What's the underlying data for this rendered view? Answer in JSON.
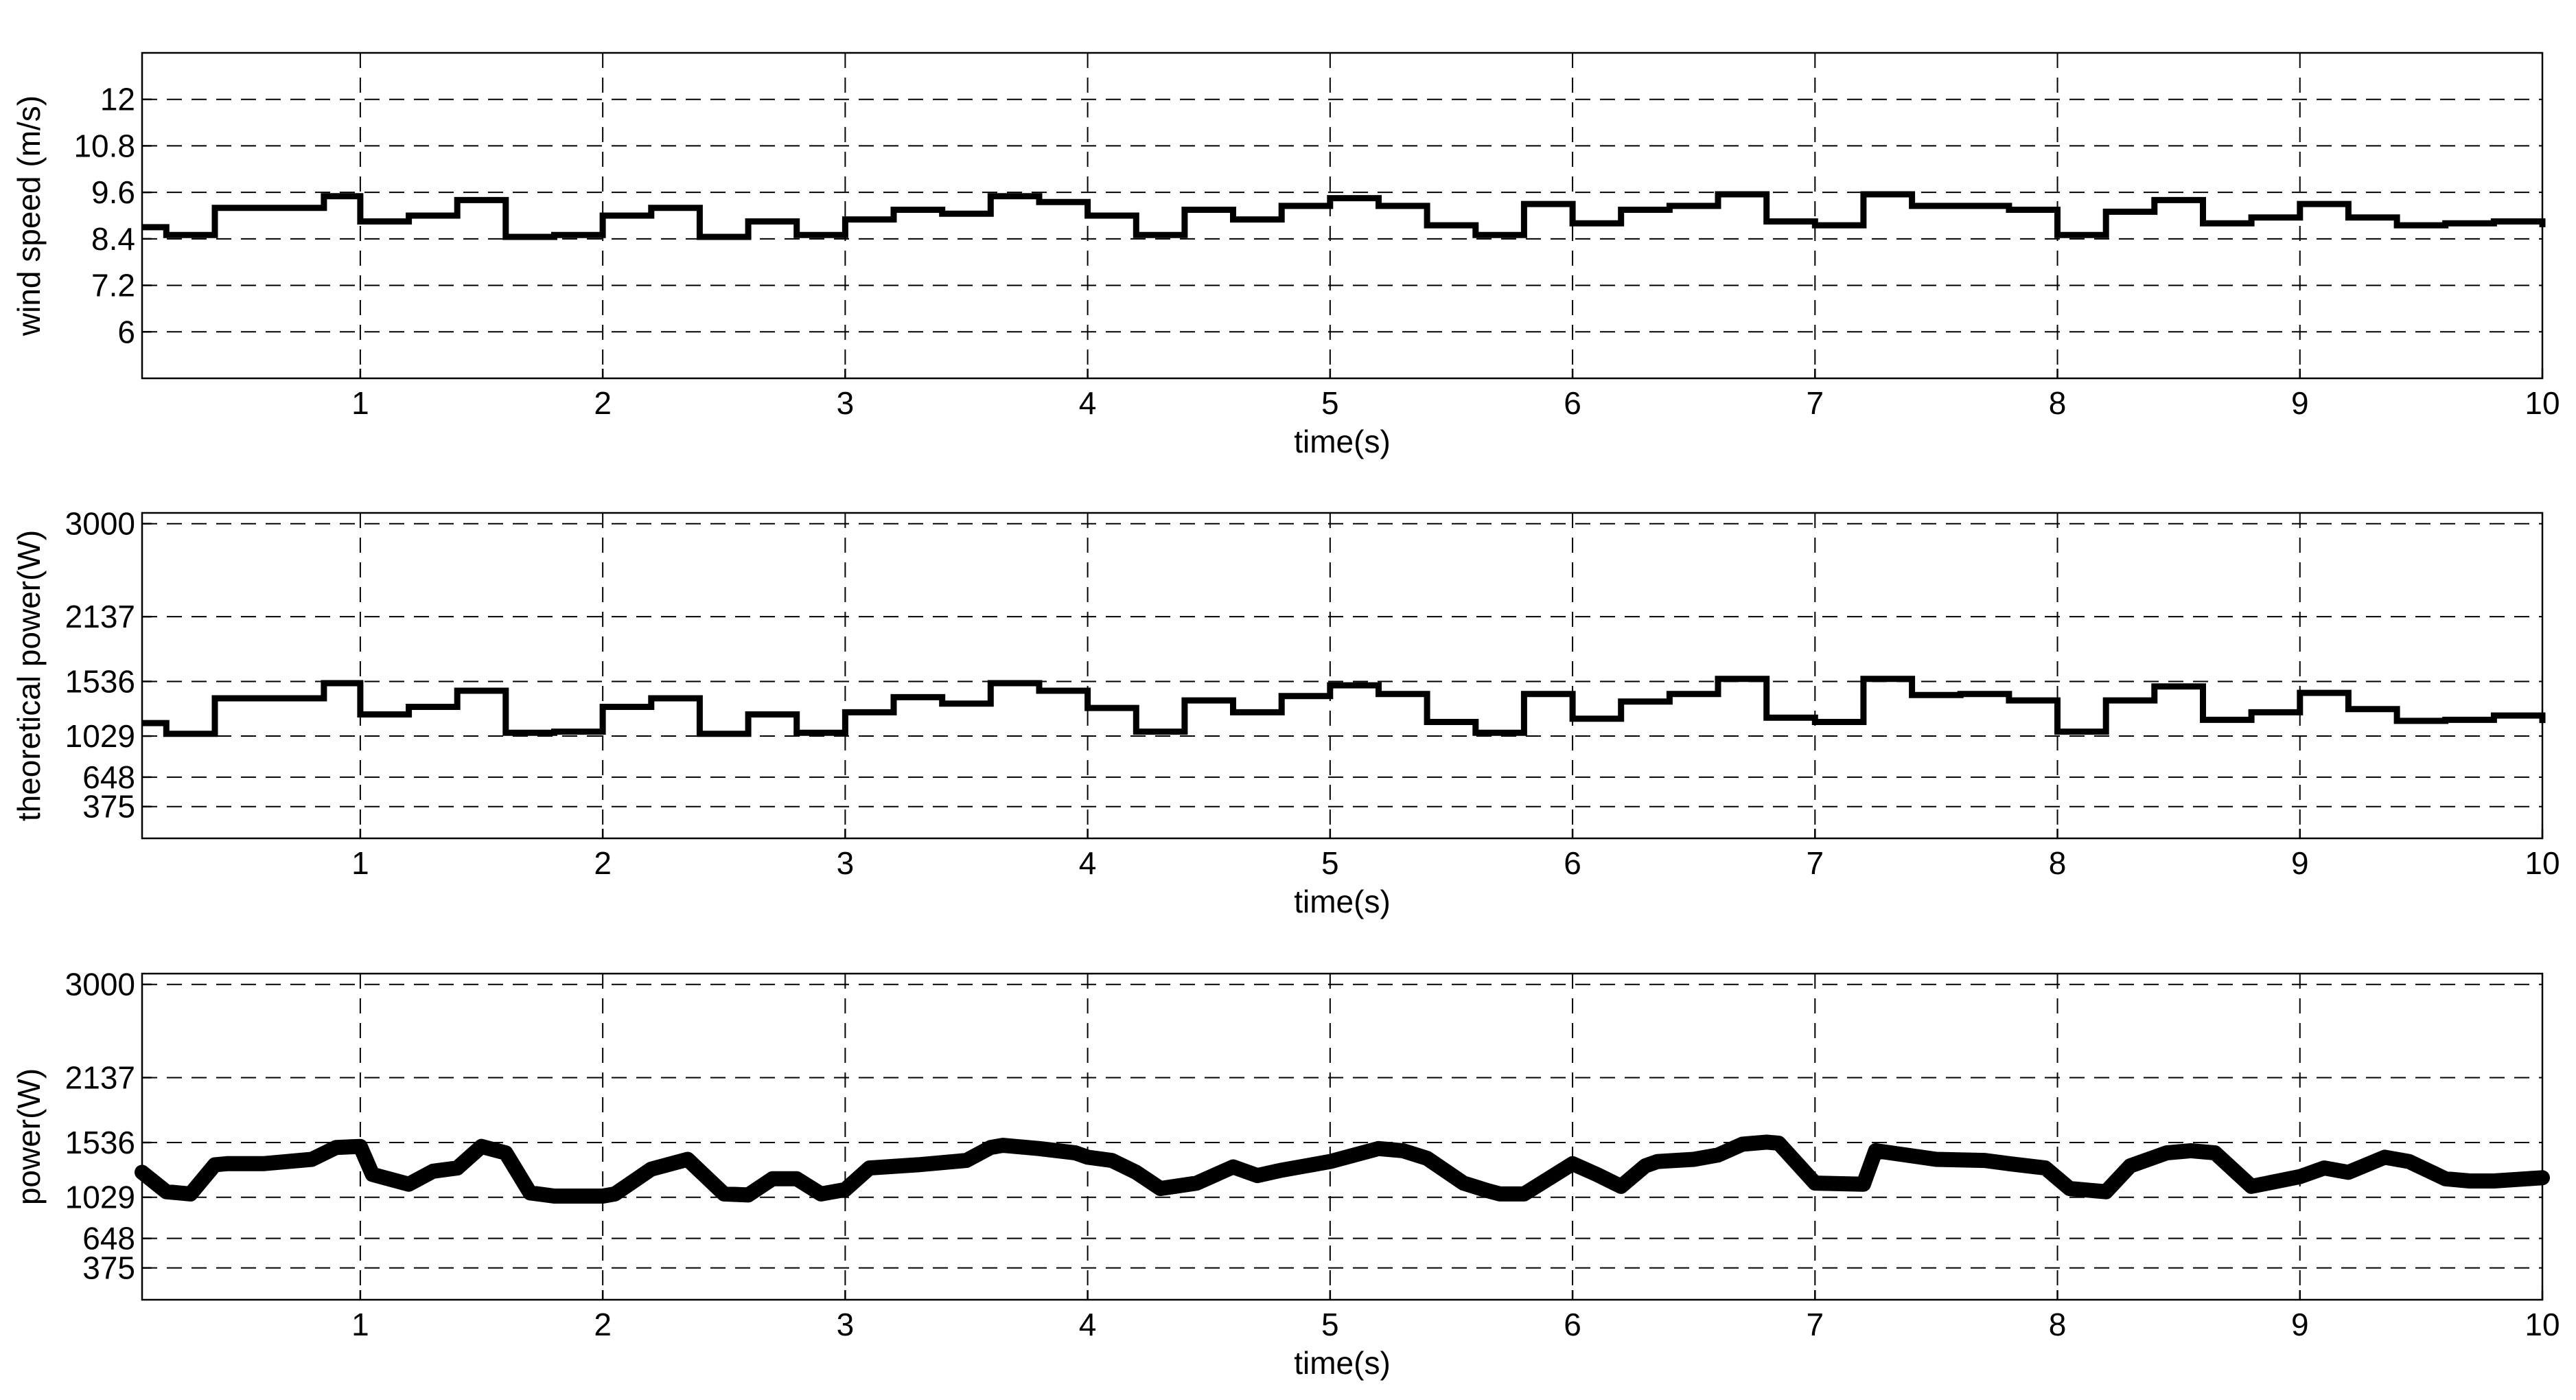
{
  "chart_data": [
    {
      "type": "line",
      "style": "step",
      "xlabel": "time(s)",
      "ylabel": "wind speed (m/s)",
      "xlim": [
        0.1,
        10
      ],
      "ylim": [
        4.8,
        13.2
      ],
      "xticks": [
        1,
        2,
        3,
        4,
        5,
        6,
        7,
        8,
        9,
        10
      ],
      "yticks": [
        6,
        7.2,
        8.4,
        9.6,
        10.8,
        12
      ],
      "ytick_labels": [
        "6",
        "7.2",
        "8.4",
        "9.6",
        "10.8",
        "12"
      ],
      "grid": true,
      "series": [
        {
          "x": [
            0.1,
            0.2,
            0.4,
            0.85,
            1.0,
            1.2,
            1.4,
            1.6,
            1.8,
            2.0,
            2.2,
            2.4,
            2.6,
            2.8,
            3.0,
            3.2,
            3.4,
            3.6,
            3.8,
            4.0,
            4.2,
            4.4,
            4.6,
            4.8,
            5.0,
            5.2,
            5.4,
            5.6,
            5.8,
            6.0,
            6.2,
            6.4,
            6.6,
            6.8,
            7.0,
            7.2,
            7.4,
            7.6,
            7.8,
            8.0,
            8.2,
            8.4,
            8.6,
            8.8,
            9.0,
            9.2,
            9.4,
            9.6,
            9.8,
            10.0
          ],
          "values": [
            8.7,
            8.5,
            9.2,
            9.5,
            8.85,
            9.0,
            9.4,
            8.45,
            8.5,
            9.0,
            9.2,
            8.45,
            8.85,
            8.5,
            8.9,
            9.15,
            9.05,
            9.5,
            9.35,
            9.0,
            8.5,
            9.15,
            8.9,
            9.25,
            9.45,
            9.25,
            8.75,
            8.5,
            9.3,
            8.8,
            9.15,
            9.25,
            9.55,
            8.85,
            8.75,
            9.55,
            9.25,
            9.25,
            9.15,
            8.5,
            9.1,
            9.4,
            8.8,
            8.95,
            9.3,
            8.95,
            8.75,
            8.8,
            8.85,
            8.7
          ]
        }
      ]
    },
    {
      "type": "line",
      "style": "step",
      "xlabel": "time(s)",
      "ylabel": "theoretical power(W)",
      "xlim": [
        0.1,
        10
      ],
      "ylim": [
        80,
        3100
      ],
      "xticks": [
        1,
        2,
        3,
        4,
        5,
        6,
        7,
        8,
        9,
        10
      ],
      "yticks": [
        375,
        648,
        1029,
        1536,
        2137,
        3000
      ],
      "ytick_labels": [
        "375",
        "648",
        "1029",
        "1536",
        "2137",
        "3000"
      ],
      "grid": true,
      "series": [
        {
          "x": [
            0.1,
            0.2,
            0.4,
            0.85,
            1.0,
            1.2,
            1.4,
            1.6,
            1.8,
            2.0,
            2.2,
            2.4,
            2.6,
            2.8,
            3.0,
            3.2,
            3.4,
            3.6,
            3.8,
            4.0,
            4.2,
            4.4,
            4.6,
            4.8,
            5.0,
            5.2,
            5.4,
            5.6,
            5.8,
            6.0,
            6.2,
            6.4,
            6.6,
            6.8,
            7.0,
            7.2,
            7.4,
            7.6,
            7.8,
            8.0,
            8.2,
            8.4,
            8.6,
            8.8,
            9.0,
            9.2,
            9.4,
            9.6,
            9.8,
            10.0
          ],
          "values": [
            1150,
            1050,
            1380,
            1520,
            1230,
            1300,
            1450,
            1060,
            1070,
            1300,
            1380,
            1050,
            1230,
            1060,
            1250,
            1390,
            1330,
            1520,
            1450,
            1290,
            1070,
            1360,
            1250,
            1400,
            1500,
            1420,
            1160,
            1060,
            1420,
            1190,
            1350,
            1420,
            1560,
            1200,
            1160,
            1560,
            1410,
            1420,
            1360,
            1070,
            1360,
            1490,
            1180,
            1250,
            1430,
            1280,
            1170,
            1180,
            1220,
            1150
          ]
        }
      ]
    },
    {
      "type": "line",
      "xlabel": "time(s)",
      "ylabel": "power(W)",
      "xlim": [
        0.1,
        10
      ],
      "ylim": [
        80,
        3100
      ],
      "xticks": [
        1,
        2,
        3,
        4,
        5,
        6,
        7,
        8,
        9,
        10
      ],
      "yticks": [
        375,
        648,
        1029,
        1536,
        2137,
        3000
      ],
      "ytick_labels": [
        "375",
        "648",
        "1029",
        "1536",
        "2137",
        "3000"
      ],
      "grid": true,
      "series": [
        {
          "x": [
            0.1,
            0.2,
            0.3,
            0.4,
            0.45,
            0.6,
            0.8,
            0.9,
            1.0,
            1.05,
            1.2,
            1.3,
            1.4,
            1.5,
            1.6,
            1.7,
            1.8,
            2.0,
            2.05,
            2.2,
            2.35,
            2.5,
            2.6,
            2.7,
            2.8,
            2.9,
            3.0,
            3.1,
            3.3,
            3.5,
            3.6,
            3.65,
            3.8,
            3.95,
            4.0,
            4.1,
            4.2,
            4.3,
            4.45,
            4.6,
            4.7,
            4.8,
            5.0,
            5.2,
            5.3,
            5.4,
            5.55,
            5.65,
            5.7,
            5.8,
            6.0,
            6.1,
            6.2,
            6.3,
            6.35,
            6.5,
            6.6,
            6.7,
            6.8,
            6.85,
            7.0,
            7.2,
            7.25,
            7.5,
            7.7,
            7.8,
            7.95,
            8.05,
            8.2,
            8.3,
            8.45,
            8.55,
            8.65,
            8.8,
            9.0,
            9.1,
            9.2,
            9.35,
            9.45,
            9.6,
            9.7,
            9.8,
            10.0
          ],
          "values": [
            1260,
            1080,
            1060,
            1330,
            1340,
            1340,
            1380,
            1490,
            1500,
            1240,
            1150,
            1270,
            1300,
            1500,
            1440,
            1070,
            1040,
            1040,
            1060,
            1290,
            1380,
            1060,
            1050,
            1200,
            1200,
            1060,
            1100,
            1300,
            1330,
            1370,
            1490,
            1510,
            1480,
            1440,
            1400,
            1370,
            1260,
            1110,
            1160,
            1310,
            1230,
            1280,
            1360,
            1480,
            1460,
            1390,
            1160,
            1090,
            1060,
            1060,
            1340,
            1240,
            1130,
            1320,
            1360,
            1380,
            1420,
            1520,
            1540,
            1530,
            1160,
            1150,
            1460,
            1380,
            1370,
            1340,
            1300,
            1110,
            1080,
            1320,
            1440,
            1460,
            1440,
            1130,
            1220,
            1300,
            1260,
            1400,
            1360,
            1200,
            1180,
            1180,
            1210
          ]
        }
      ]
    }
  ]
}
